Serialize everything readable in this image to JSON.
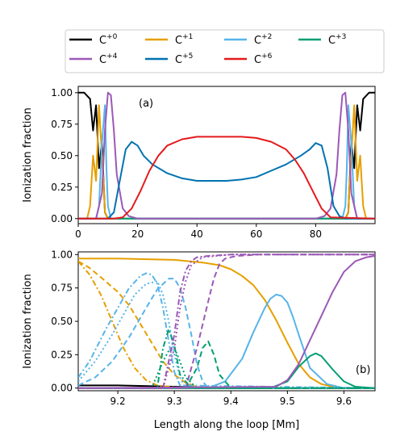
{
  "legend": {
    "entries": [
      {
        "label": "C",
        "sup": "+0",
        "color": "#000000"
      },
      {
        "label": "C",
        "sup": "+1",
        "color": "#E69F00"
      },
      {
        "label": "C",
        "sup": "+2",
        "color": "#56B4E9"
      },
      {
        "label": "C",
        "sup": "+3",
        "color": "#009E73"
      },
      {
        "label": "C",
        "sup": "+4",
        "color": "#9B59B6"
      },
      {
        "label": "C",
        "sup": "+5",
        "color": "#0072B2"
      },
      {
        "label": "C",
        "sup": "+6",
        "color": "#E41A1C"
      }
    ]
  },
  "chart_data": [
    {
      "type": "line",
      "panel_label": "(a)",
      "xlabel": "",
      "ylabel": "Ionization fraction",
      "xlim": [
        0,
        100
      ],
      "ylim": [
        -0.04,
        1.05
      ],
      "xticks": [
        0,
        20,
        40,
        60,
        80
      ],
      "yticks": [
        0.0,
        0.25,
        0.5,
        0.75,
        1.0
      ],
      "ytick_labels": [
        "0.00",
        "0.25",
        "0.50",
        "0.75",
        "1.00"
      ],
      "series": [
        {
          "ion": "+0",
          "color": "#000000",
          "x": [
            0,
            2,
            4,
            5,
            6,
            7,
            8,
            9,
            10,
            90,
            91,
            92,
            93,
            94,
            95,
            96,
            98,
            100
          ],
          "y": [
            1,
            1,
            0.95,
            0.7,
            0.9,
            0.4,
            0.6,
            0.05,
            0,
            0,
            0.05,
            0.6,
            0.4,
            0.9,
            0.7,
            0.95,
            1,
            1
          ]
        },
        {
          "ion": "+1",
          "color": "#E69F00",
          "x": [
            0,
            3,
            4,
            5,
            6,
            7,
            8,
            8.5,
            9,
            10,
            90,
            91,
            91.5,
            92,
            93,
            94,
            95,
            96,
            97,
            100
          ],
          "y": [
            0,
            0,
            0.1,
            0.5,
            0.3,
            0.9,
            0.5,
            0.3,
            0.05,
            0,
            0,
            0.05,
            0.3,
            0.5,
            0.9,
            0.3,
            0.5,
            0.1,
            0,
            0
          ]
        },
        {
          "ion": "+2",
          "color": "#56B4E9",
          "x": [
            0,
            6,
            7,
            8,
            9,
            9.5,
            10,
            11,
            89,
            90,
            90.5,
            91,
            92,
            93,
            94,
            100
          ],
          "y": [
            0,
            0,
            0.1,
            0.6,
            0.9,
            0.4,
            0.1,
            0,
            0,
            0.1,
            0.4,
            0.9,
            0.6,
            0.1,
            0,
            0
          ]
        },
        {
          "ion": "+3",
          "color": "#009E73",
          "x": [
            0,
            100
          ],
          "y": [
            0,
            0
          ]
        },
        {
          "ion": "+4",
          "color": "#9B59B6",
          "x": [
            0,
            6,
            8,
            9,
            10,
            11,
            12,
            13,
            15,
            17,
            20,
            25,
            80,
            83,
            85,
            87,
            88,
            89,
            90,
            91,
            92,
            94,
            100
          ],
          "y": [
            0,
            0,
            0.2,
            0.7,
            1,
            0.98,
            0.7,
            0.35,
            0.08,
            0.02,
            0,
            0,
            0,
            0.02,
            0.08,
            0.35,
            0.7,
            0.98,
            1,
            0.7,
            0.2,
            0,
            0
          ]
        },
        {
          "ion": "+5",
          "color": "#0072B2",
          "x": [
            0,
            10,
            12,
            14,
            16,
            18,
            20,
            22,
            25,
            30,
            35,
            40,
            45,
            50,
            55,
            60,
            65,
            70,
            75,
            78,
            80,
            82,
            84,
            86,
            88,
            90,
            100
          ],
          "y": [
            0,
            0,
            0.05,
            0.3,
            0.55,
            0.61,
            0.58,
            0.5,
            0.43,
            0.36,
            0.32,
            0.3,
            0.3,
            0.3,
            0.31,
            0.33,
            0.38,
            0.43,
            0.5,
            0.55,
            0.6,
            0.58,
            0.4,
            0.1,
            0.02,
            0,
            0
          ]
        },
        {
          "ion": "+6",
          "color": "#E41A1C",
          "x": [
            0,
            12,
            15,
            18,
            21,
            24,
            27,
            30,
            35,
            40,
            45,
            50,
            55,
            60,
            65,
            70,
            73,
            76,
            79,
            82,
            85,
            100
          ],
          "y": [
            0,
            0,
            0.01,
            0.08,
            0.22,
            0.38,
            0.5,
            0.58,
            0.63,
            0.65,
            0.65,
            0.65,
            0.65,
            0.64,
            0.61,
            0.55,
            0.47,
            0.36,
            0.22,
            0.08,
            0.01,
            0
          ]
        }
      ]
    },
    {
      "type": "line",
      "panel_label": "(b)",
      "xlabel": "Length along the loop [Mm]",
      "ylabel": "Ionization fraction",
      "xlim": [
        9.13,
        9.655
      ],
      "ylim": [
        -0.02,
        1.02
      ],
      "xticks": [
        9.2,
        9.3,
        9.4,
        9.5,
        9.6
      ],
      "yticks": [
        0.0,
        0.25,
        0.5,
        0.75,
        1.0
      ],
      "ytick_labels": [
        "0.00",
        "0.25",
        "0.50",
        "0.75",
        "1.00"
      ],
      "series": [
        {
          "ion": "+0",
          "color": "#000000",
          "style": "solid",
          "x": [
            9.13,
            9.2,
            9.3,
            9.4,
            9.655
          ],
          "y": [
            0.02,
            0.02,
            0.01,
            0,
            0
          ]
        },
        {
          "ion": "+1",
          "color": "#E69F00",
          "style": "solid",
          "x": [
            9.13,
            9.2,
            9.3,
            9.35,
            9.38,
            9.4,
            9.42,
            9.44,
            9.46,
            9.48,
            9.5,
            9.52,
            9.54,
            9.56,
            9.58,
            9.6,
            9.655
          ],
          "y": [
            0.97,
            0.97,
            0.96,
            0.94,
            0.92,
            0.89,
            0.84,
            0.77,
            0.66,
            0.51,
            0.34,
            0.18,
            0.08,
            0.03,
            0.01,
            0,
            0
          ]
        },
        {
          "ion": "+1",
          "color": "#E69F00",
          "style": "dashed",
          "x": [
            9.13,
            9.15,
            9.17,
            9.2,
            9.22,
            9.24,
            9.26,
            9.28,
            9.3,
            9.32,
            9.34,
            9.36,
            9.655
          ],
          "y": [
            0.95,
            0.9,
            0.83,
            0.72,
            0.62,
            0.48,
            0.34,
            0.2,
            0.1,
            0.04,
            0.01,
            0,
            0
          ]
        },
        {
          "ion": "+1",
          "color": "#E69F00",
          "style": "dashdot",
          "x": [
            9.13,
            9.15,
            9.17,
            9.19,
            9.21,
            9.23,
            9.25,
            9.27,
            9.29,
            9.31,
            9.655
          ],
          "y": [
            0.95,
            0.85,
            0.7,
            0.5,
            0.3,
            0.15,
            0.06,
            0.02,
            0.01,
            0,
            0
          ]
        },
        {
          "ion": "+2",
          "color": "#56B4E9",
          "style": "solid",
          "x": [
            9.13,
            9.36,
            9.39,
            9.42,
            9.44,
            9.46,
            9.47,
            9.48,
            9.49,
            9.5,
            9.51,
            9.52,
            9.54,
            9.57,
            9.6,
            9.655
          ],
          "y": [
            0,
            0,
            0.05,
            0.22,
            0.42,
            0.6,
            0.67,
            0.7,
            0.69,
            0.64,
            0.53,
            0.4,
            0.15,
            0.03,
            0,
            0
          ]
        },
        {
          "ion": "+2",
          "color": "#56B4E9",
          "style": "dashed",
          "x": [
            9.13,
            9.16,
            9.19,
            9.22,
            9.25,
            9.27,
            9.29,
            9.3,
            9.31,
            9.32,
            9.33,
            9.34,
            9.35,
            9.36,
            9.655
          ],
          "y": [
            0.02,
            0.08,
            0.2,
            0.38,
            0.6,
            0.74,
            0.82,
            0.82,
            0.75,
            0.6,
            0.4,
            0.18,
            0.05,
            0,
            0
          ]
        },
        {
          "ion": "+2",
          "color": "#56B4E9",
          "style": "dashdot",
          "x": [
            9.13,
            9.15,
            9.18,
            9.2,
            9.22,
            9.24,
            9.25,
            9.26,
            9.27,
            9.28,
            9.29,
            9.3,
            9.31,
            9.655
          ],
          "y": [
            0.08,
            0.2,
            0.45,
            0.6,
            0.75,
            0.84,
            0.86,
            0.85,
            0.78,
            0.6,
            0.35,
            0.12,
            0.02,
            0
          ]
        },
        {
          "ion": "+2",
          "color": "#56B4E9",
          "style": "dotted",
          "x": [
            9.13,
            9.16,
            9.19,
            9.21,
            9.23,
            9.25,
            9.27,
            9.28,
            9.29,
            9.3,
            9.31,
            9.32,
            9.655
          ],
          "y": [
            0.05,
            0.2,
            0.4,
            0.55,
            0.7,
            0.78,
            0.8,
            0.7,
            0.5,
            0.25,
            0.08,
            0,
            0
          ]
        },
        {
          "ion": "+3",
          "color": "#009E73",
          "style": "solid",
          "x": [
            9.13,
            9.47,
            9.5,
            9.52,
            9.54,
            9.55,
            9.56,
            9.58,
            9.6,
            9.62,
            9.655
          ],
          "y": [
            0,
            0,
            0.05,
            0.16,
            0.24,
            0.26,
            0.24,
            0.14,
            0.05,
            0.01,
            0
          ]
        },
        {
          "ion": "+3",
          "color": "#009E73",
          "style": "dashed",
          "x": [
            9.13,
            9.32,
            9.34,
            9.35,
            9.36,
            9.37,
            9.38,
            9.4,
            9.655
          ],
          "y": [
            0,
            0,
            0.15,
            0.3,
            0.35,
            0.25,
            0.1,
            0,
            0
          ]
        },
        {
          "ion": "+3",
          "color": "#009E73",
          "style": "dashdot",
          "x": [
            9.13,
            9.27,
            9.28,
            9.29,
            9.3,
            9.31,
            9.33,
            9.655
          ],
          "y": [
            0,
            0,
            0.3,
            0.44,
            0.32,
            0.1,
            0,
            0
          ]
        },
        {
          "ion": "+3",
          "color": "#009E73",
          "style": "dotted",
          "x": [
            9.13,
            9.26,
            9.28,
            9.29,
            9.3,
            9.31,
            9.32,
            9.34,
            9.655
          ],
          "y": [
            0,
            0,
            0.2,
            0.28,
            0.3,
            0.2,
            0.08,
            0,
            0
          ]
        },
        {
          "ion": "+4",
          "color": "#9B59B6",
          "style": "solid",
          "x": [
            9.13,
            9.48,
            9.5,
            9.52,
            9.54,
            9.56,
            9.58,
            9.6,
            9.62,
            9.64,
            9.655
          ],
          "y": [
            0,
            0.01,
            0.06,
            0.18,
            0.36,
            0.54,
            0.72,
            0.87,
            0.95,
            0.98,
            0.99
          ]
        },
        {
          "ion": "+4",
          "color": "#9B59B6",
          "style": "dashed",
          "x": [
            9.13,
            9.32,
            9.34,
            9.36,
            9.37,
            9.38,
            9.39,
            9.41,
            9.45,
            9.5,
            9.655
          ],
          "y": [
            0,
            0,
            0.3,
            0.65,
            0.82,
            0.93,
            0.97,
            0.99,
            1,
            1,
            1
          ]
        },
        {
          "ion": "+4",
          "color": "#9B59B6",
          "style": "dashdot",
          "x": [
            9.13,
            9.28,
            9.3,
            9.31,
            9.32,
            9.33,
            9.34,
            9.36,
            9.4,
            9.655
          ],
          "y": [
            0,
            0,
            0.4,
            0.72,
            0.88,
            0.95,
            0.98,
            0.99,
            1,
            1
          ]
        },
        {
          "ion": "+4",
          "color": "#9B59B6",
          "style": "dotted",
          "x": [
            9.13,
            9.28,
            9.3,
            9.31,
            9.32,
            9.33,
            9.35,
            9.4,
            9.655
          ],
          "y": [
            0,
            0,
            0.3,
            0.6,
            0.8,
            0.92,
            0.98,
            1,
            1
          ]
        }
      ]
    }
  ]
}
